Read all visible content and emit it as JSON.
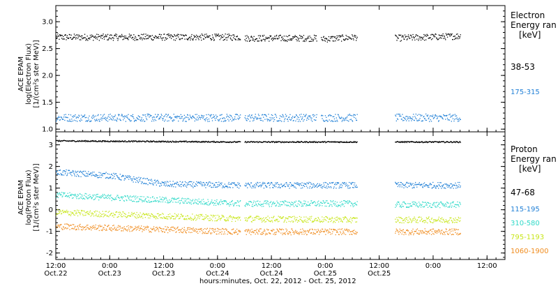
{
  "chart_data": [
    {
      "type": "scatter",
      "panel": "electron",
      "ylabel_lines": [
        "ACE EPAM",
        "log(Electron Flux)",
        "[1/(cm²s ster MeV)]"
      ],
      "ylim": [
        0.95,
        3.3
      ],
      "yticks": [
        1.0,
        1.5,
        2.0,
        2.5,
        3.0
      ],
      "ytick_labels": [
        "1.0",
        "1.5",
        "2.0",
        "2.5",
        "3.0"
      ],
      "legend_title_lines": [
        "Electron",
        "Energy ran",
        "[keV]"
      ],
      "series": [
        {
          "name": "38-53",
          "color": "#000000",
          "segments": [
            {
              "x": [
                0,
                41
              ],
              "y": [
                2.72,
                2.72
              ]
            },
            {
              "x": [
                42,
                58
              ],
              "y": [
                2.7,
                2.7
              ]
            },
            {
              "x": [
                59,
                67
              ],
              "y": [
                2.68,
                2.72
              ]
            },
            {
              "x": [
                75.5,
                90
              ],
              "y": [
                2.7,
                2.74
              ]
            }
          ]
        },
        {
          "name": "175-315",
          "color": "#1f7fd6",
          "segments": [
            {
              "x": [
                0,
                41
              ],
              "y": [
                1.22,
                1.22
              ]
            },
            {
              "x": [
                42,
                58
              ],
              "y": [
                1.22,
                1.22
              ]
            },
            {
              "x": [
                59,
                67
              ],
              "y": [
                1.22,
                1.22
              ]
            },
            {
              "x": [
                75.5,
                90
              ],
              "y": [
                1.22,
                1.22
              ]
            }
          ]
        }
      ]
    },
    {
      "type": "scatter",
      "panel": "proton",
      "ylabel_lines": [
        "ACE EPAM",
        "log(Proton Flux)",
        "[1/(cm²s ster MeV)]"
      ],
      "ylim": [
        -2.3,
        3.6
      ],
      "yticks": [
        -2,
        -1,
        0,
        1,
        2,
        3
      ],
      "ytick_labels": [
        "-2",
        "-1",
        "0",
        "1",
        "2",
        "3"
      ],
      "legend_title_lines": [
        "Proton",
        "Energy ran",
        "[keV]"
      ],
      "series": [
        {
          "name": "47-68",
          "color": "#000000",
          "segments": [
            {
              "x": [
                0,
                41
              ],
              "y": [
                3.2,
                3.15
              ]
            },
            {
              "x": [
                42,
                67
              ],
              "y": [
                3.15,
                3.15
              ]
            },
            {
              "x": [
                75.5,
                90
              ],
              "y": [
                3.15,
                3.15
              ]
            }
          ]
        },
        {
          "name": "115-195",
          "color": "#1f7fd6",
          "segments": [
            {
              "x": [
                0,
                12
              ],
              "y": [
                1.75,
                1.6
              ]
            },
            {
              "x": [
                12,
                24
              ],
              "y": [
                1.6,
                1.2
              ]
            },
            {
              "x": [
                24,
                41
              ],
              "y": [
                1.2,
                1.15
              ]
            },
            {
              "x": [
                42,
                67
              ],
              "y": [
                1.15,
                1.15
              ]
            },
            {
              "x": [
                75.5,
                90
              ],
              "y": [
                1.15,
                1.15
              ]
            }
          ]
        },
        {
          "name": "310-580",
          "color": "#2fd9c8",
          "segments": [
            {
              "x": [
                0,
                41
              ],
              "y": [
                0.7,
                0.3
              ]
            },
            {
              "x": [
                42,
                67
              ],
              "y": [
                0.3,
                0.3
              ]
            },
            {
              "x": [
                75.5,
                90
              ],
              "y": [
                0.25,
                0.25
              ]
            }
          ]
        },
        {
          "name": "795-1193",
          "color": "#c8e619",
          "segments": [
            {
              "x": [
                0,
                41
              ],
              "y": [
                -0.1,
                -0.4
              ]
            },
            {
              "x": [
                42,
                67
              ],
              "y": [
                -0.4,
                -0.45
              ]
            },
            {
              "x": [
                75.5,
                90
              ],
              "y": [
                -0.45,
                -0.45
              ]
            }
          ]
        },
        {
          "name": "1060-1900",
          "color": "#f08c1e",
          "segments": [
            {
              "x": [
                0,
                41
              ],
              "y": [
                -0.75,
                -1.0
              ]
            },
            {
              "x": [
                42,
                67
              ],
              "y": [
                -1.0,
                -1.0
              ]
            },
            {
              "x": [
                75.5,
                90
              ],
              "y": [
                -1.0,
                -1.0
              ]
            }
          ]
        }
      ]
    }
  ],
  "x_axis": {
    "xlim": [
      0,
      100
    ],
    "ticks": [
      0,
      12,
      24,
      36,
      48,
      60,
      72,
      84,
      96
    ],
    "tick_labels_top": [
      "12:00",
      "0:00",
      "12:00",
      "0:00",
      "12:00",
      "0:00",
      "12:00",
      "0:00",
      "12:00"
    ],
    "tick_labels_bottom": [
      "Oct.22",
      "Oct.23",
      "Oct.23",
      "Oct.24",
      "Oct.24",
      "Oct.25",
      "Oct.25",
      "",
      ""
    ],
    "title": "hours:minutes, Oct. 22, 2012 - Oct. 25, 2012"
  },
  "top_tick_labels_note": ""
}
